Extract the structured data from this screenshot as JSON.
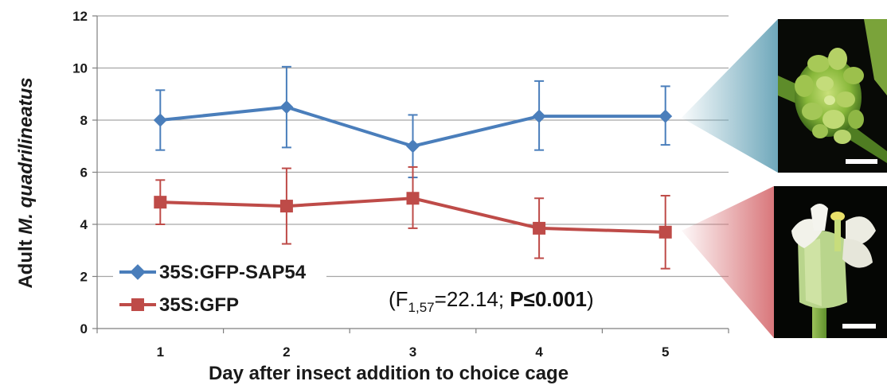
{
  "chart_data": {
    "type": "line",
    "xlabel": "Day after insect addition to choice cage",
    "ylabel_prefix": "Adult ",
    "ylabel_species": "M. quadrilineatus",
    "ylim": [
      0,
      12
    ],
    "yticks": [
      0,
      2,
      4,
      6,
      8,
      10,
      12
    ],
    "categories": [
      "1",
      "2",
      "3",
      "4",
      "5"
    ],
    "grid": "horizontal",
    "legend_position": "bottom-left",
    "series": [
      {
        "name": "35S:GFP-SAP54",
        "color": "#4a7ebb",
        "marker": "diamond",
        "values": [
          8.0,
          8.5,
          7.0,
          8.15,
          8.15
        ],
        "err_upper": [
          9.15,
          10.05,
          8.2,
          9.5,
          9.3
        ],
        "err_lower": [
          6.85,
          6.95,
          5.8,
          6.85,
          7.05
        ]
      },
      {
        "name": "35S:GFP",
        "color": "#be4b48",
        "marker": "square",
        "values": [
          4.85,
          4.7,
          5.0,
          3.85,
          3.7
        ],
        "err_upper": [
          5.7,
          6.15,
          6.2,
          5.0,
          5.1
        ],
        "err_lower": [
          4.0,
          3.25,
          3.85,
          2.7,
          2.3
        ]
      }
    ],
    "annotation": {
      "open": "(F",
      "subscript": "1,57",
      "middle": "=22.14; ",
      "bold": "P≤0.001",
      "close": ")"
    }
  },
  "photos": [
    {
      "name": "flower-photo-sap54",
      "description_icon": "green-leafy-flower-cluster-icon",
      "scale_bar": true
    },
    {
      "name": "flower-photo-gfp",
      "description_icon": "white-petal-flower-icon",
      "scale_bar": true
    }
  ],
  "colors": {
    "blue_wedge": "#8fbccb",
    "red_wedge": "#e6a0a2",
    "grid": "#a6a6a6",
    "axis": "#7f7f7f"
  }
}
